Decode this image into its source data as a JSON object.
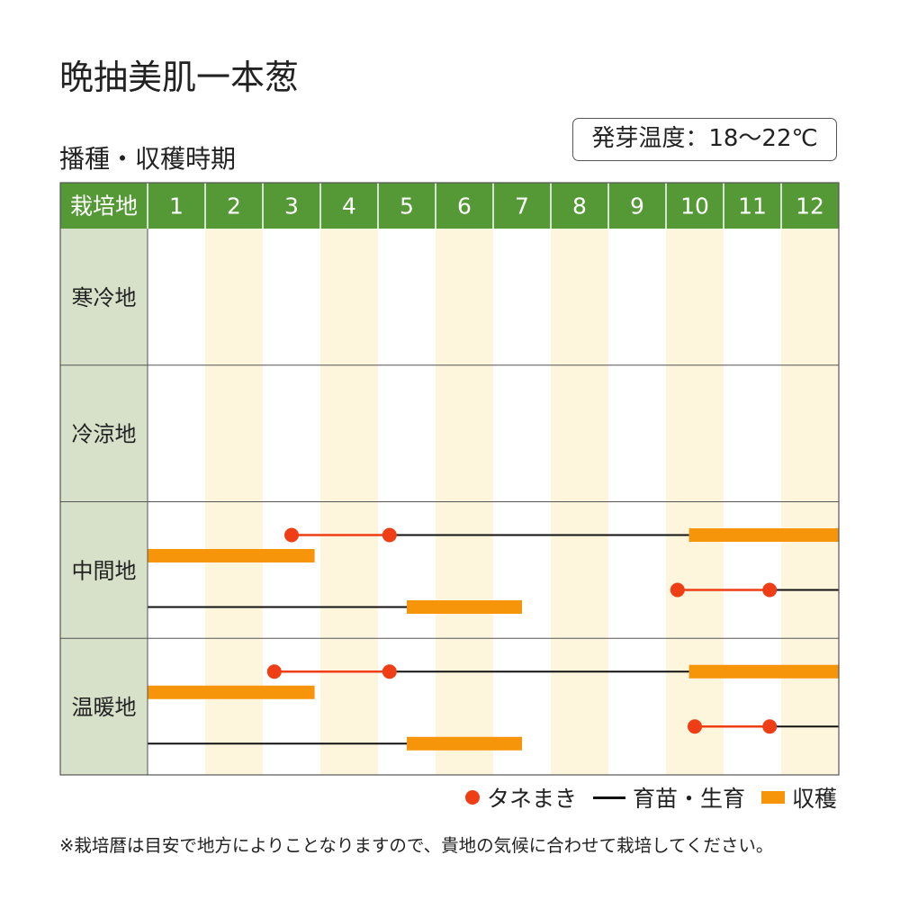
{
  "title": "晩抽美肌一本葱",
  "subtitle": "播種・収穫時期",
  "germination": "発芽温度：18〜22℃",
  "note": "※栽培暦は目安で地方によりことなりますので、貴地の気候に合わせて栽培してください。",
  "colors": {
    "header_green": "#549935",
    "region_label_bg": "#d7e0c8",
    "alternate_column": "#fdf5dc",
    "sowing": "#ef3e16",
    "growing": "#111111",
    "harvest": "#f7950a"
  },
  "legend": {
    "sowing": "タネまき",
    "growing": "育苗・生育",
    "harvest": "収穫"
  },
  "chart_data": {
    "type": "table",
    "header_label": "栽培地",
    "months": [
      "1",
      "2",
      "3",
      "4",
      "5",
      "6",
      "7",
      "8",
      "9",
      "10",
      "11",
      "12"
    ],
    "regions": [
      {
        "name": "寒冷地",
        "rows": []
      },
      {
        "name": "冷涼地",
        "rows": []
      },
      {
        "name": "中間地",
        "rows": [
          {
            "sowing": [
              3.5,
              5.2
            ],
            "growing": [
              5.2,
              10.4
            ],
            "harvest": [
              [
                10.4,
                13.0
              ]
            ]
          },
          {
            "harvest": [
              [
                1.0,
                3.9
              ]
            ]
          },
          {
            "growing": [
              1.0,
              5.5
            ],
            "harvest": [
              [
                5.5,
                7.5
              ]
            ]
          },
          {
            "sowing": [
              10.2,
              11.8
            ],
            "growing": [
              11.8,
              13.0
            ]
          }
        ]
      },
      {
        "name": "温暖地",
        "rows": [
          {
            "sowing": [
              3.2,
              5.2
            ],
            "growing": [
              5.2,
              10.4
            ],
            "harvest": [
              [
                10.4,
                13.0
              ]
            ]
          },
          {
            "harvest": [
              [
                1.0,
                3.9
              ]
            ]
          },
          {
            "growing": [
              1.0,
              5.5
            ],
            "harvest": [
              [
                5.5,
                7.5
              ]
            ]
          },
          {
            "sowing": [
              10.5,
              11.8
            ],
            "growing": [
              11.8,
              13.0
            ]
          }
        ]
      }
    ]
  }
}
